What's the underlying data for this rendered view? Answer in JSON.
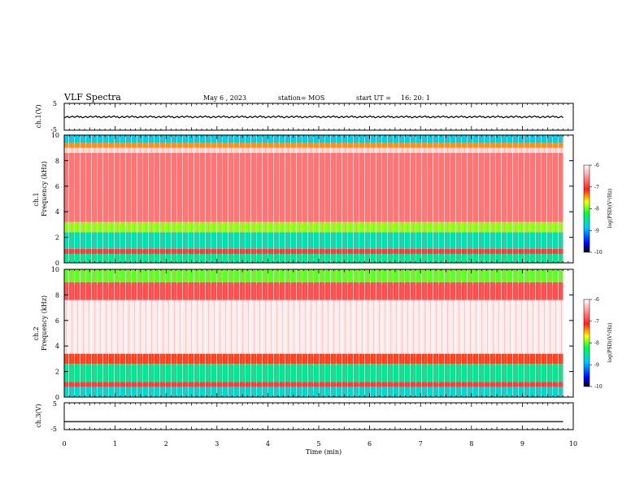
{
  "header": {
    "title": "VLF Spectra",
    "date": "May 6 , 2023",
    "station": "station= MOS",
    "start": "start UT =",
    "start_time": "16: 20: 1"
  },
  "chart_data": [
    {
      "type": "line",
      "panel": "ch1-waveform",
      "ylabel": "ch.1(V)",
      "ylim": [
        -5,
        5
      ],
      "yticks": [
        "5",
        "-5"
      ],
      "xlim": [
        0,
        10
      ],
      "series": [
        {
          "x": [
            0,
            9.8
          ],
          "y": [
            0,
            0
          ]
        }
      ]
    },
    {
      "type": "heatmap",
      "panel": "ch1-spectrogram",
      "ylabel": "ch.1",
      "ylabel2": "Frequency (kHz)",
      "ylim": [
        0,
        10
      ],
      "yticks": [
        "0",
        "2",
        "4",
        "6",
        "8",
        "10"
      ],
      "xlim": [
        0,
        10
      ],
      "colorbar": {
        "label": "log(PSD)(V²/Hz)",
        "range": [
          -10,
          -6
        ],
        "ticks": [
          "-6",
          "-7",
          "-8",
          "-9",
          "-10"
        ]
      },
      "bands": [
        {
          "from": 0,
          "to": 0.7,
          "level": -8.5
        },
        {
          "from": 0.7,
          "to": 1.1,
          "level": -7.0
        },
        {
          "from": 1.1,
          "to": 2.4,
          "level": -8.6
        },
        {
          "from": 2.4,
          "to": 3.2,
          "level": -7.9
        },
        {
          "from": 3.2,
          "to": 8.6,
          "level": -6.7
        },
        {
          "from": 8.6,
          "to": 9.0,
          "level": -6.2
        },
        {
          "from": 9.0,
          "to": 9.4,
          "level": -7.4
        },
        {
          "from": 9.4,
          "to": 10,
          "level": -8.8
        }
      ]
    },
    {
      "type": "heatmap",
      "panel": "ch2-spectrogram",
      "ylabel": "ch.2",
      "ylabel2": "Frequency (kHz)",
      "ylim": [
        0,
        10
      ],
      "yticks": [
        "0",
        "2",
        "4",
        "6",
        "8",
        "10"
      ],
      "xlim": [
        0,
        10
      ],
      "colorbar": {
        "label": "log(PSD)(V²/Hz)",
        "range": [
          -10,
          -6
        ],
        "ticks": [
          "-6",
          "-7",
          "-8",
          "-9",
          "-10"
        ]
      },
      "bands": [
        {
          "from": 0,
          "to": 0.8,
          "level": -8.7
        },
        {
          "from": 0.8,
          "to": 1.2,
          "level": -7.0
        },
        {
          "from": 1.2,
          "to": 2.6,
          "level": -8.5
        },
        {
          "from": 2.6,
          "to": 3.4,
          "level": -7.2
        },
        {
          "from": 3.4,
          "to": 7.6,
          "level": -6.1
        },
        {
          "from": 7.6,
          "to": 9.0,
          "level": -6.9
        },
        {
          "from": 9.0,
          "to": 10,
          "level": -8.0
        }
      ]
    },
    {
      "type": "line",
      "panel": "ch3-waveform",
      "ylabel": "ch.3(V)",
      "ylim": [
        -5,
        5
      ],
      "yticks": [
        "5",
        "-5"
      ],
      "xlim": [
        0,
        10
      ],
      "xlabel": "Time (min)",
      "xticks": [
        "0",
        "1",
        "2",
        "3",
        "4",
        "5",
        "6",
        "7",
        "8",
        "9",
        "10"
      ],
      "series": [
        {
          "x": [
            0,
            9.8
          ],
          "y": [
            -2,
            -2
          ]
        }
      ]
    }
  ]
}
